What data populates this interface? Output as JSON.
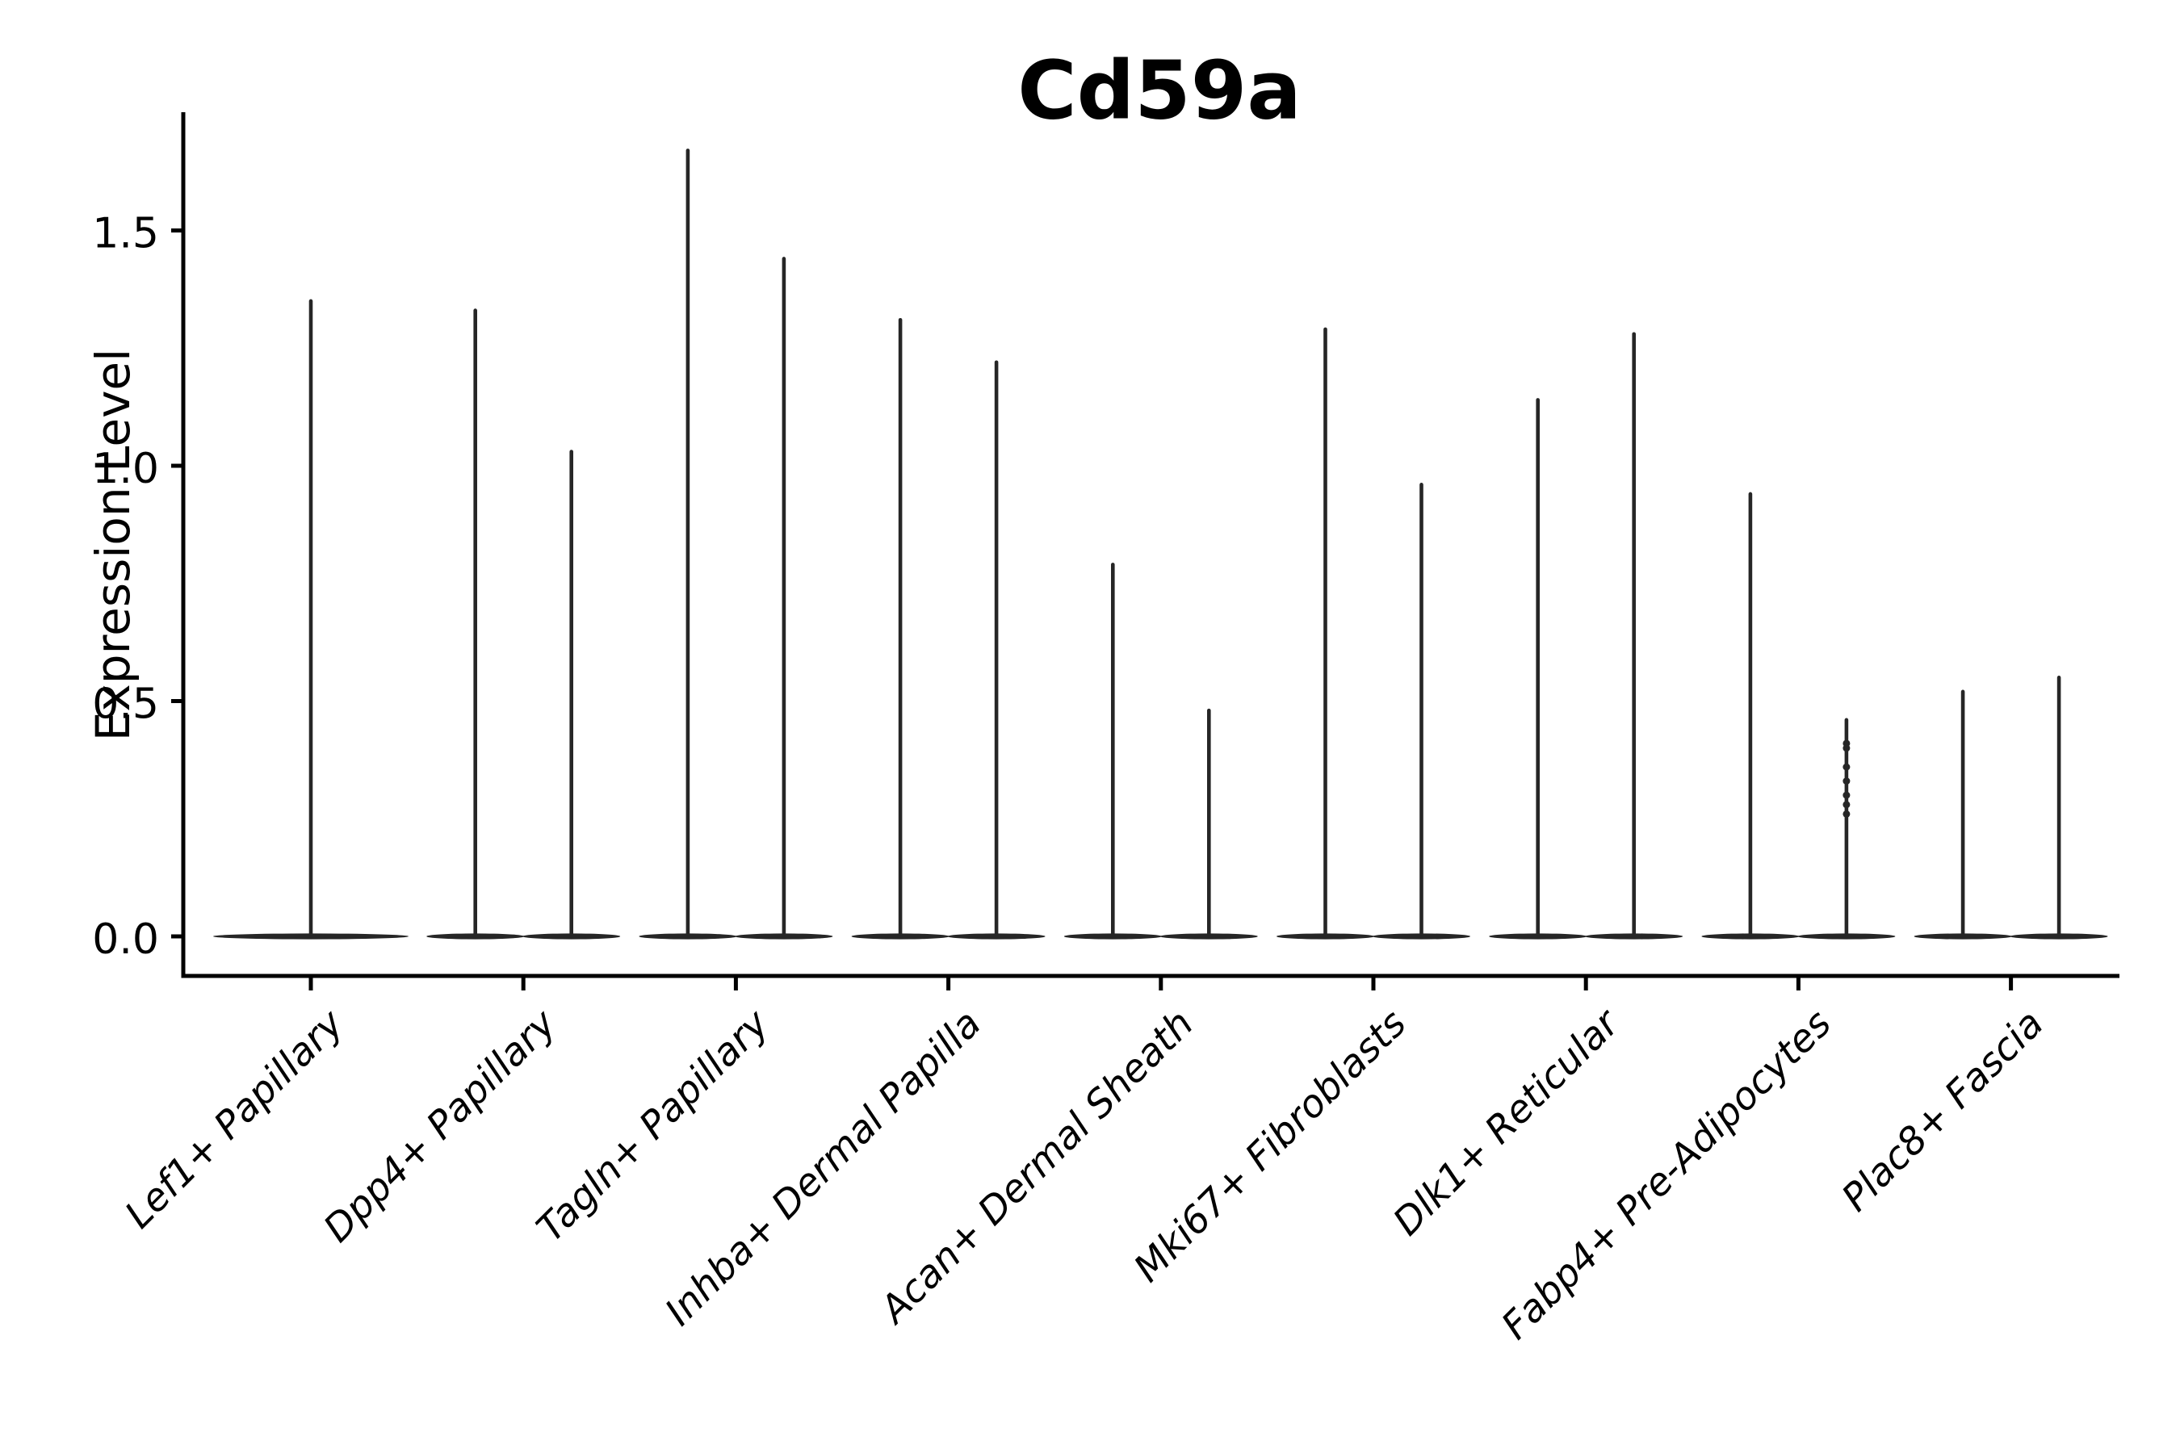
{
  "figure": {
    "background": "#ffffff",
    "ink_color": "#000000",
    "violin_color": "#262626"
  },
  "chart_data": {
    "type": "violin",
    "title": "Cd59a",
    "xlabel": "",
    "ylabel": "Expression Level",
    "ylim": [
      -0.084,
      1.75
    ],
    "grid": false,
    "legend": "none",
    "yticks": {
      "values": [
        0.0,
        0.5,
        1.0,
        1.5
      ],
      "labels": [
        "0.0",
        "0.5",
        "1.0",
        "1.5"
      ]
    },
    "baseline_value": 0.0,
    "shape_note": "each violin is a flat lens of density at 0 with a thin vertical tail up to its max expression value",
    "categories": [
      {
        "label": "Lef1+ Papillary",
        "violins": [
          {
            "position": "center",
            "max": 1.35
          }
        ]
      },
      {
        "label": "Dpp4+ Papillary",
        "violins": [
          {
            "position": "left",
            "max": 1.33
          },
          {
            "position": "right",
            "max": 1.03
          }
        ]
      },
      {
        "label": "Tagln+ Papillary",
        "violins": [
          {
            "position": "left",
            "max": 1.67
          },
          {
            "position": "right",
            "max": 1.44
          }
        ]
      },
      {
        "label": "Inhba+ Dermal Papilla",
        "violins": [
          {
            "position": "left",
            "max": 1.31
          },
          {
            "position": "right",
            "max": 1.22
          }
        ]
      },
      {
        "label": "Acan+ Dermal Sheath",
        "violins": [
          {
            "position": "left",
            "max": 0.79
          },
          {
            "position": "right",
            "max": 0.48
          }
        ]
      },
      {
        "label": "Mki67+ Fibroblasts",
        "violins": [
          {
            "position": "left",
            "max": 1.29
          },
          {
            "position": "right",
            "max": 0.96
          }
        ]
      },
      {
        "label": "Dlk1+ Reticular",
        "violins": [
          {
            "position": "left",
            "max": 1.14
          },
          {
            "position": "right",
            "max": 1.28
          }
        ]
      },
      {
        "label": "Fabp4+ Pre-Adipocytes",
        "violins": [
          {
            "position": "left",
            "max": 0.94
          },
          {
            "position": "right",
            "max": 0.46,
            "jitter_points": [
              0.41,
              0.4,
              0.36,
              0.33,
              0.3,
              0.28,
              0.26
            ]
          }
        ]
      },
      {
        "label": "Plac8+ Fascia",
        "violins": [
          {
            "position": "left",
            "max": 0.52
          },
          {
            "position": "right",
            "max": 0.55
          }
        ]
      }
    ]
  }
}
